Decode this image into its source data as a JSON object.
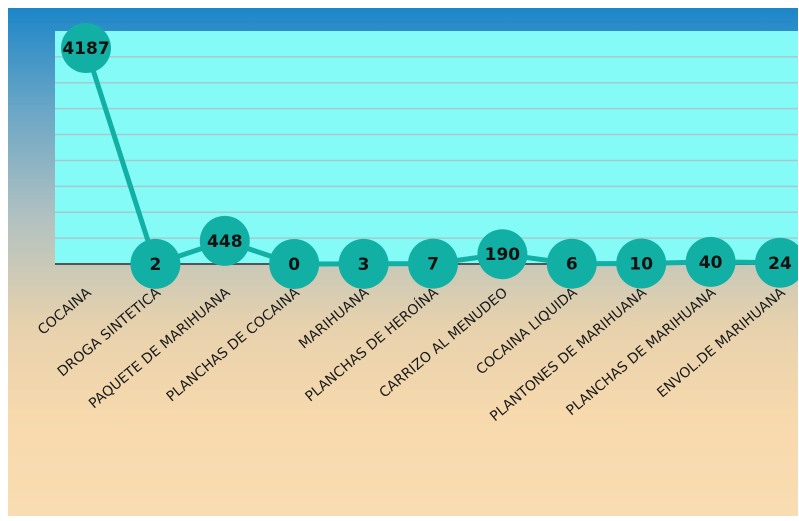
{
  "chart_data": {
    "type": "line",
    "title": "",
    "xlabel": "",
    "ylabel": "",
    "categories": [
      "COCAINA",
      "DROGA SINTETICA",
      "PAQUETE DE MARIHUANA",
      "PLANCHAS DE COCAINA",
      "MARIHUANA",
      "PLANCHAS DE HEROÍNA",
      "CARRIZO AL MENUDEO",
      "COCAINA LIQUIDA",
      "PLANTONES DE MARIHUANA",
      "PLANCHAS DE MARIHUANA",
      "ENVOL.DE MARIHUANA"
    ],
    "series": [
      {
        "values": [
          4187,
          2,
          448,
          0,
          3,
          7,
          190,
          6,
          10,
          40,
          24
        ],
        "labels": [
          "4187",
          "2",
          "448",
          "0",
          "3",
          "7",
          "190",
          "6",
          "10",
          "40",
          "24"
        ]
      }
    ],
    "ylim": [
      0,
      4500
    ],
    "grid": true,
    "legend": "none",
    "colors": {
      "plot_bg": "#85fbf8",
      "gridline": "#a8c8cc",
      "line": "#12b0a4",
      "marker": "#12b0a4",
      "axis": "#555555"
    }
  }
}
